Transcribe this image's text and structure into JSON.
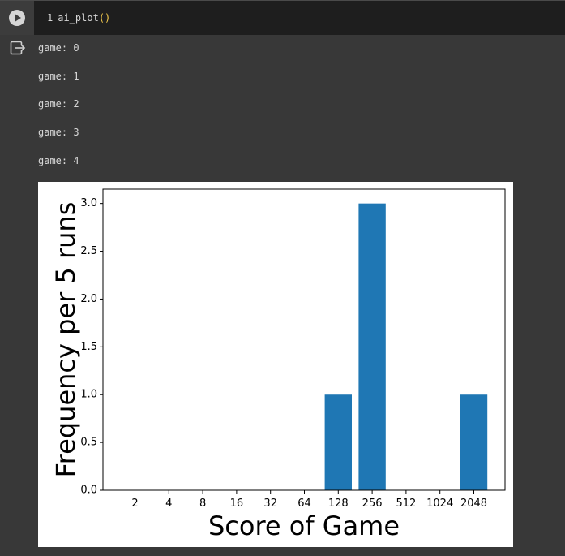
{
  "cell": {
    "line_number": "1",
    "code_name": "ai_plot",
    "code_parens": "()"
  },
  "output": {
    "lines": [
      "game: 0",
      "game: 1",
      "game: 2",
      "game: 3",
      "game: 4"
    ]
  },
  "icons": {
    "run": "play-circle-icon",
    "output": "output-redirect-icon"
  },
  "chart_data": {
    "type": "bar",
    "categories": [
      "2",
      "4",
      "8",
      "16",
      "32",
      "64",
      "128",
      "256",
      "512",
      "1024",
      "2048"
    ],
    "values": [
      0,
      0,
      0,
      0,
      0,
      0,
      1,
      3,
      0,
      0,
      1
    ],
    "xlabel": "Score of Game",
    "ylabel": "Frequency per 5 runs",
    "ylim": [
      0,
      3.15
    ],
    "yticks": [
      "0.0",
      "0.5",
      "1.0",
      "1.5",
      "2.0",
      "2.5",
      "3.0"
    ],
    "ytick_values": [
      0,
      0.5,
      1,
      1.5,
      2,
      2.5,
      3
    ],
    "bar_color": "#1f77b4",
    "grid": false
  }
}
